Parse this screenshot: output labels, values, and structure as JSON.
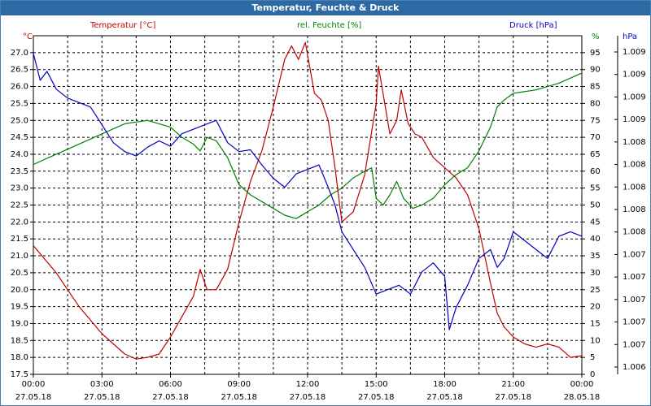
{
  "window": {
    "title": "Temperatur, Feuchte & Druck"
  },
  "colors": {
    "temperature": "#c00000",
    "humidity": "#008000",
    "pressure": "#0000c0",
    "grid": "#000000",
    "text": "#000000"
  },
  "chart_data": {
    "type": "line",
    "title": "Temperatur, Feuchte & Druck",
    "grid": true,
    "legend_position": "top",
    "x_ticks": [
      {
        "time": "00:00",
        "date": "27.05.18"
      },
      {
        "time": "03:00",
        "date": "27.05.18"
      },
      {
        "time": "06:00",
        "date": "27.05.18"
      },
      {
        "time": "09:00",
        "date": "27.05.18"
      },
      {
        "time": "12:00",
        "date": "27.05.18"
      },
      {
        "time": "15:00",
        "date": "27.05.18"
      },
      {
        "time": "18:00",
        "date": "27.05.18"
      },
      {
        "time": "21:00",
        "date": "27.05.18"
      },
      {
        "time": "00:00",
        "date": "28.05.18"
      }
    ],
    "x_range_hours": [
      0,
      24
    ],
    "axes": {
      "temperature": {
        "label": "Temperatur [°C]",
        "unit_label": "°C",
        "range": [
          17.5,
          27.5
        ],
        "ticks": [
          "17.5",
          "18.0",
          "18.5",
          "19.0",
          "19.5",
          "20.0",
          "20.5",
          "21.0",
          "21.5",
          "22.0",
          "22.5",
          "23.0",
          "23.5",
          "24.0",
          "24.5",
          "25.0",
          "25.5",
          "26.0",
          "26.5",
          "27.0"
        ]
      },
      "humidity": {
        "label": "rel. Feuchte [%]",
        "unit_label": "%",
        "range": [
          0,
          100
        ],
        "ticks": [
          "0",
          "5",
          "10",
          "15",
          "20",
          "25",
          "30",
          "35",
          "40",
          "45",
          "50",
          "55",
          "60",
          "65",
          "70",
          "75",
          "80",
          "85",
          "90",
          "95"
        ]
      },
      "pressure": {
        "label": "Druck [hPa]",
        "unit_label": "hPa",
        "range": [
          1006.0,
          1009.8
        ],
        "ticks": [
          "1.006",
          "1.007",
          "1.007",
          "1.007",
          "1.007",
          "1.007",
          "1.008",
          "1.008",
          "1.008",
          "1.008",
          "1.008",
          "1.009",
          "1.009",
          "1.009",
          "1.009"
        ]
      }
    },
    "series": [
      {
        "name": "Temperatur [°C]",
        "axis": "temperature",
        "points": [
          [
            0,
            21.3
          ],
          [
            0.5,
            20.9
          ],
          [
            1,
            20.5
          ],
          [
            1.5,
            20.0
          ],
          [
            2,
            19.5
          ],
          [
            2.5,
            19.1
          ],
          [
            3,
            18.7
          ],
          [
            3.5,
            18.4
          ],
          [
            4,
            18.1
          ],
          [
            4.5,
            17.95
          ],
          [
            5,
            18.0
          ],
          [
            5.5,
            18.1
          ],
          [
            6,
            18.6
          ],
          [
            6.5,
            19.2
          ],
          [
            7,
            19.8
          ],
          [
            7.3,
            20.6
          ],
          [
            7.6,
            20.0
          ],
          [
            8,
            20.0
          ],
          [
            8.5,
            20.6
          ],
          [
            9,
            22.0
          ],
          [
            9.5,
            23.2
          ],
          [
            10,
            24.1
          ],
          [
            10.5,
            25.4
          ],
          [
            11,
            26.8
          ],
          [
            11.3,
            27.2
          ],
          [
            11.6,
            26.8
          ],
          [
            11.9,
            27.3
          ],
          [
            12.3,
            25.8
          ],
          [
            12.6,
            25.6
          ],
          [
            12.9,
            25.0
          ],
          [
            13.2,
            23.6
          ],
          [
            13.5,
            22.0
          ],
          [
            14,
            22.3
          ],
          [
            14.5,
            23.4
          ],
          [
            15,
            25.5
          ],
          [
            15.1,
            26.6
          ],
          [
            15.3,
            25.8
          ],
          [
            15.6,
            24.6
          ],
          [
            15.9,
            25.0
          ],
          [
            16.1,
            25.9
          ],
          [
            16.4,
            24.9
          ],
          [
            16.7,
            24.6
          ],
          [
            17,
            24.5
          ],
          [
            17.5,
            23.9
          ],
          [
            18,
            23.6
          ],
          [
            18.5,
            23.3
          ],
          [
            19,
            22.8
          ],
          [
            19.5,
            21.8
          ],
          [
            20,
            20.2
          ],
          [
            20.3,
            19.3
          ],
          [
            20.6,
            18.9
          ],
          [
            21,
            18.6
          ],
          [
            21.5,
            18.4
          ],
          [
            22,
            18.3
          ],
          [
            22.5,
            18.4
          ],
          [
            23,
            18.3
          ],
          [
            23.5,
            18.0
          ],
          [
            24,
            18.05
          ]
        ]
      },
      {
        "name": "rel. Feuchte [%]",
        "axis": "humidity",
        "points": [
          [
            0,
            62
          ],
          [
            1,
            65
          ],
          [
            2,
            68
          ],
          [
            3,
            71
          ],
          [
            4,
            74
          ],
          [
            5,
            75
          ],
          [
            6,
            73
          ],
          [
            6.5,
            70
          ],
          [
            7,
            68
          ],
          [
            7.3,
            66
          ],
          [
            7.6,
            70
          ],
          [
            8,
            69
          ],
          [
            8.5,
            64
          ],
          [
            9,
            56
          ],
          [
            9.5,
            53
          ],
          [
            10,
            51
          ],
          [
            10.5,
            49
          ],
          [
            11,
            47
          ],
          [
            11.5,
            46
          ],
          [
            12,
            48
          ],
          [
            12.5,
            50
          ],
          [
            13,
            53
          ],
          [
            13.5,
            55
          ],
          [
            14,
            58
          ],
          [
            14.5,
            60
          ],
          [
            14.8,
            61
          ],
          [
            15,
            52
          ],
          [
            15.3,
            50
          ],
          [
            15.6,
            53
          ],
          [
            15.9,
            57
          ],
          [
            16.2,
            52
          ],
          [
            16.6,
            49
          ],
          [
            17,
            50
          ],
          [
            17.5,
            52
          ],
          [
            18,
            56
          ],
          [
            18.5,
            59
          ],
          [
            19,
            61
          ],
          [
            19.5,
            66
          ],
          [
            20,
            73
          ],
          [
            20.3,
            79
          ],
          [
            20.6,
            81
          ],
          [
            21,
            83
          ],
          [
            22,
            84
          ],
          [
            23,
            86
          ],
          [
            24,
            89
          ]
        ]
      },
      {
        "name": "Druck [hPa]",
        "axis": "pressure",
        "points": [
          [
            0,
            1009.6
          ],
          [
            0.3,
            1009.3
          ],
          [
            0.6,
            1009.4
          ],
          [
            1,
            1009.2
          ],
          [
            1.5,
            1009.1
          ],
          [
            2,
            1009.05
          ],
          [
            2.5,
            1009.0
          ],
          [
            3,
            1008.8
          ],
          [
            3.5,
            1008.6
          ],
          [
            4,
            1008.5
          ],
          [
            4.5,
            1008.45
          ],
          [
            5,
            1008.55
          ],
          [
            5.5,
            1008.62
          ],
          [
            6,
            1008.56
          ],
          [
            6.5,
            1008.7
          ],
          [
            7,
            1008.75
          ],
          [
            7.5,
            1008.8
          ],
          [
            8,
            1008.85
          ],
          [
            8.5,
            1008.6
          ],
          [
            9,
            1008.5
          ],
          [
            9.5,
            1008.52
          ],
          [
            10,
            1008.35
          ],
          [
            10.5,
            1008.2
          ],
          [
            11,
            1008.1
          ],
          [
            11.5,
            1008.25
          ],
          [
            12,
            1008.3
          ],
          [
            12.5,
            1008.35
          ],
          [
            12.9,
            1008.1
          ],
          [
            13.2,
            1007.9
          ],
          [
            13.5,
            1007.6
          ],
          [
            14,
            1007.4
          ],
          [
            14.5,
            1007.2
          ],
          [
            15,
            1006.9
          ],
          [
            15.5,
            1006.95
          ],
          [
            16,
            1007.0
          ],
          [
            16.5,
            1006.9
          ],
          [
            17,
            1007.15
          ],
          [
            17.5,
            1007.25
          ],
          [
            18,
            1007.1
          ],
          [
            18.2,
            1006.5
          ],
          [
            18.5,
            1006.75
          ],
          [
            19,
            1007.0
          ],
          [
            19.5,
            1007.3
          ],
          [
            20,
            1007.4
          ],
          [
            20.3,
            1007.2
          ],
          [
            20.6,
            1007.3
          ],
          [
            21,
            1007.6
          ],
          [
            21.5,
            1007.5
          ],
          [
            22,
            1007.4
          ],
          [
            22.5,
            1007.3
          ],
          [
            23,
            1007.55
          ],
          [
            23.5,
            1007.6
          ],
          [
            24,
            1007.55
          ]
        ]
      }
    ]
  }
}
